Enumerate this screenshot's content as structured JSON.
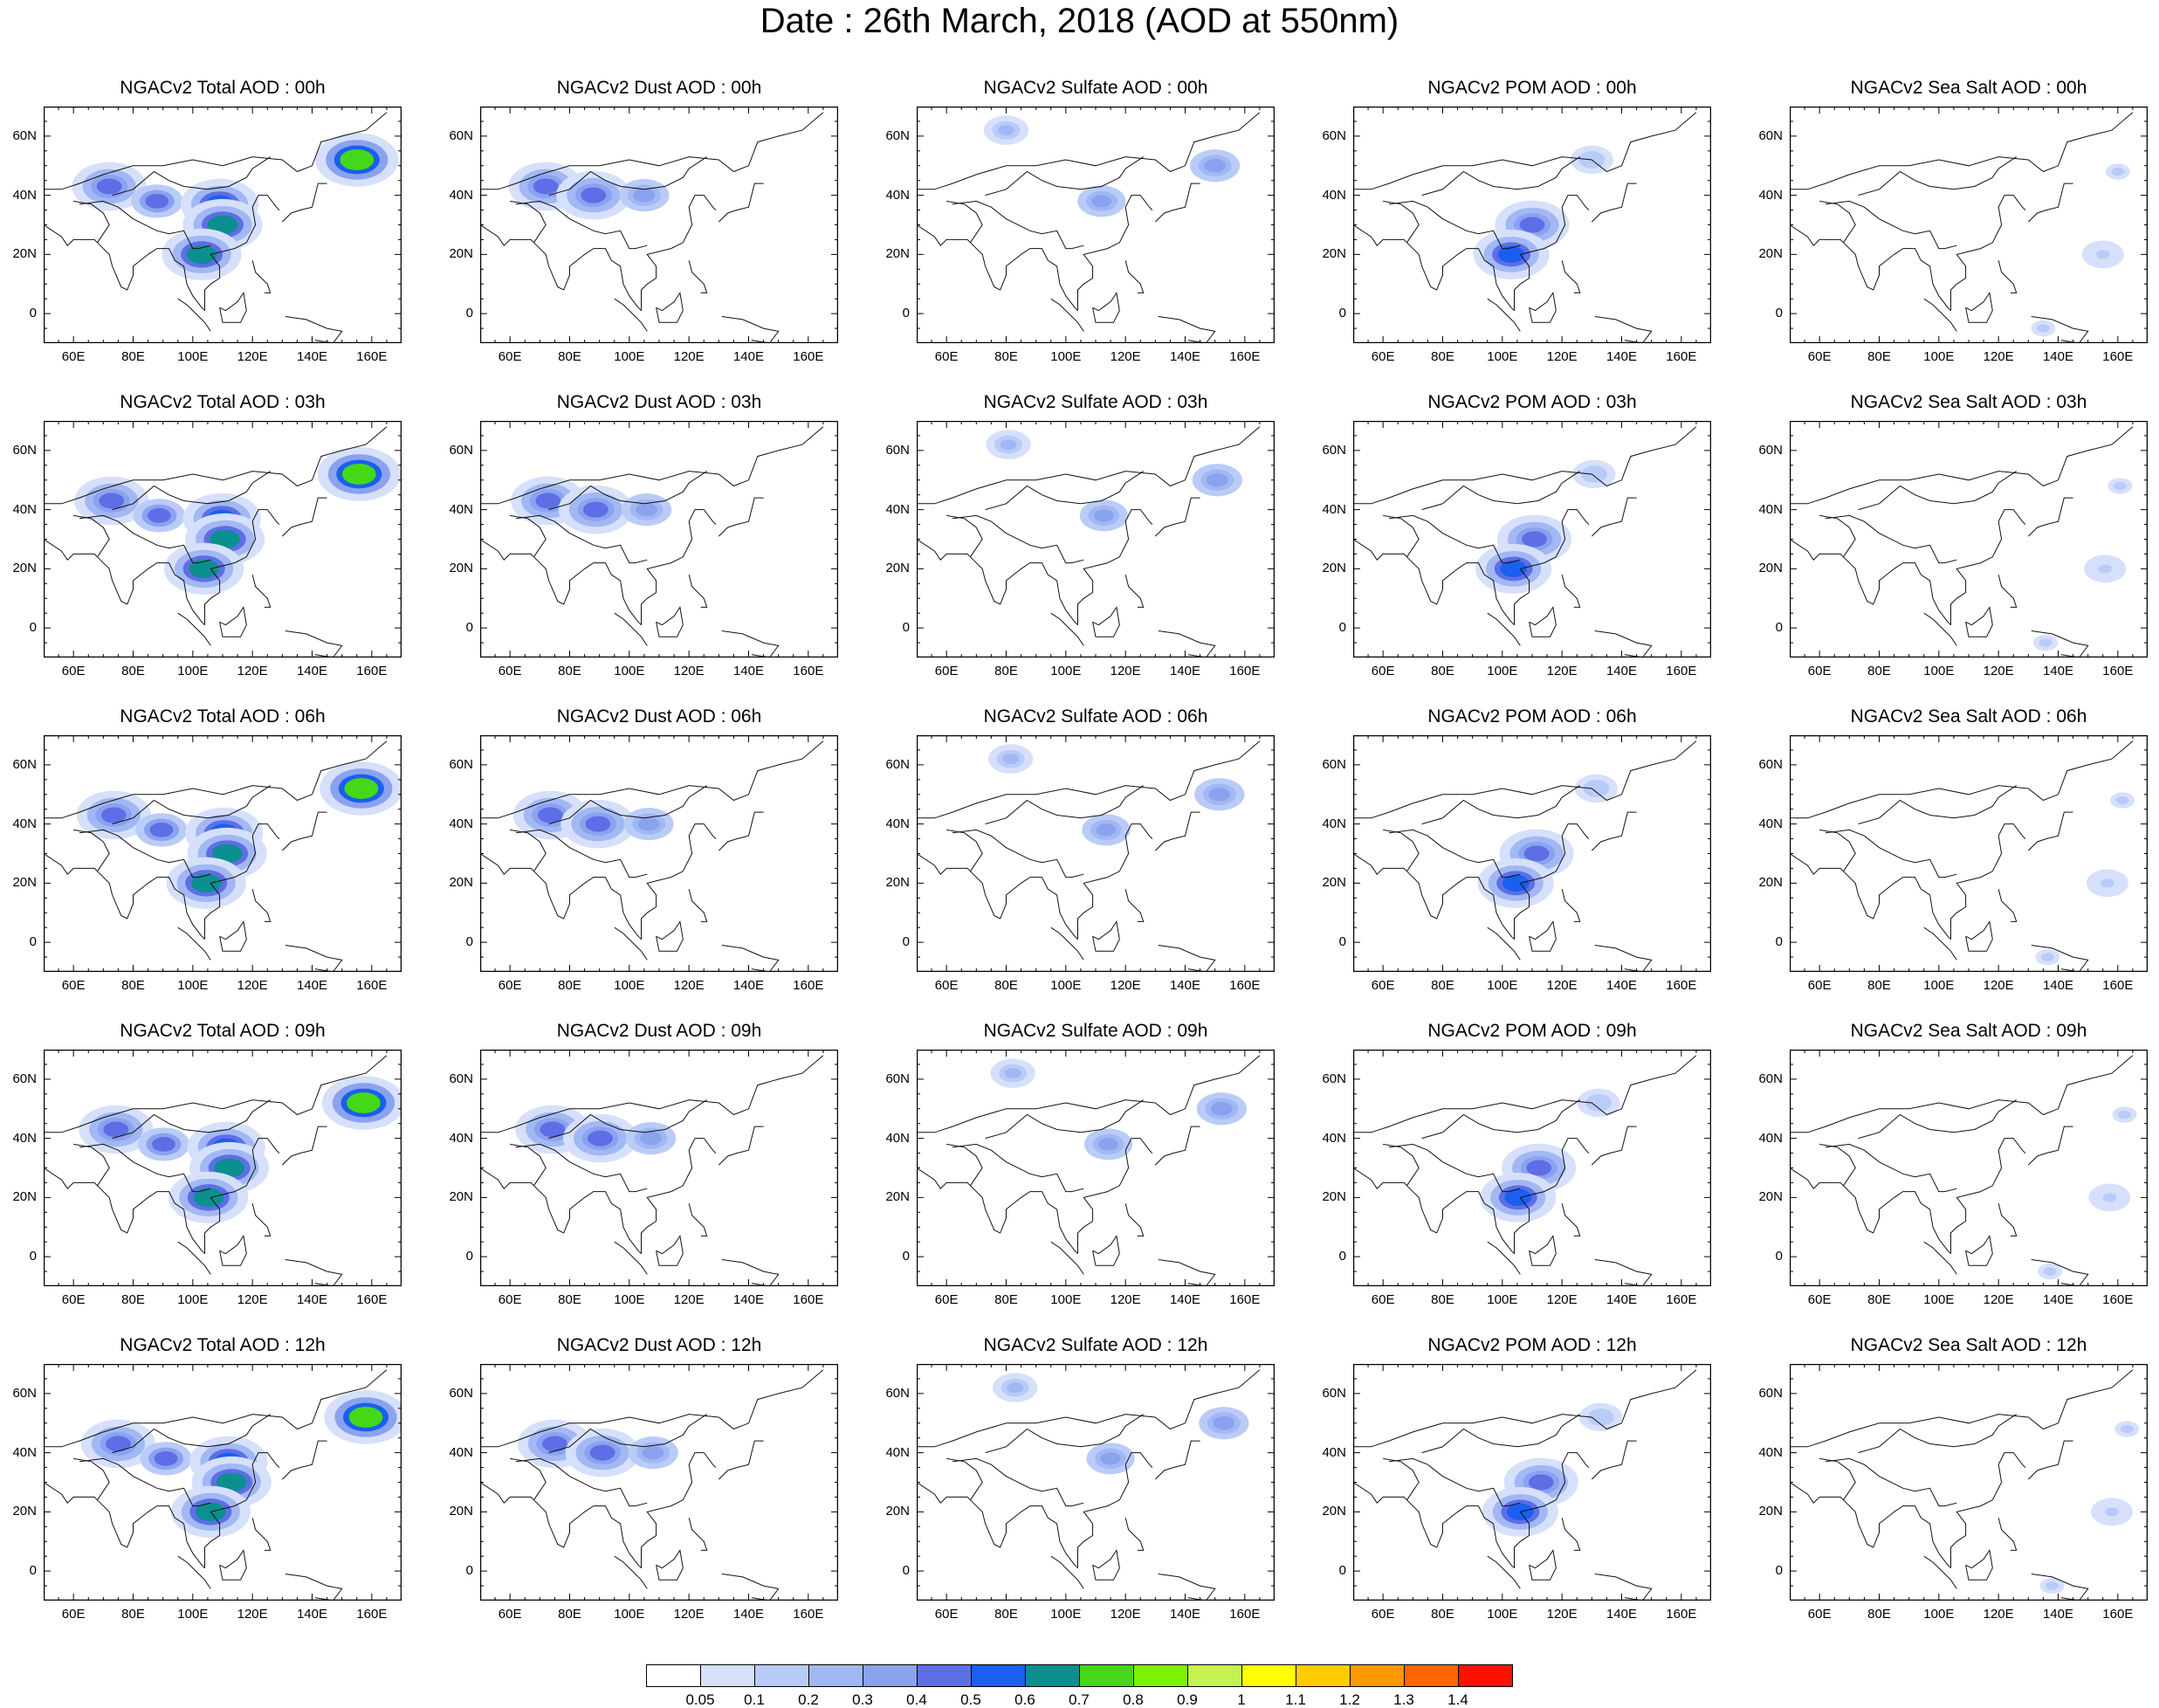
{
  "title": "Date : 26th March, 2018 (AOD at 550nm)",
  "chart_data": {
    "type": "heatmap",
    "title": "Date : 26th March, 2018 (AOD at 550nm)",
    "region": {
      "lon_range": [
        50,
        170
      ],
      "lat_range": [
        -10,
        70
      ]
    },
    "x_ticks": [
      "60E",
      "80E",
      "100E",
      "120E",
      "140E",
      "160E"
    ],
    "y_ticks": [
      "60N",
      "40N",
      "20N",
      "0"
    ],
    "panels": [
      {
        "title": "NGACv2 Total AOD : 00h",
        "species": "total",
        "hour": 0
      },
      {
        "title": "NGACv2 Dust AOD : 00h",
        "species": "dust",
        "hour": 0
      },
      {
        "title": "NGACv2 Sulfate AOD : 00h",
        "species": "sulfate",
        "hour": 0
      },
      {
        "title": "NGACv2 POM AOD : 00h",
        "species": "pom",
        "hour": 0
      },
      {
        "title": "NGACv2 Sea Salt AOD : 00h",
        "species": "seasalt",
        "hour": 0
      },
      {
        "title": "NGACv2 Total AOD : 03h",
        "species": "total",
        "hour": 3
      },
      {
        "title": "NGACv2 Dust AOD : 03h",
        "species": "dust",
        "hour": 3
      },
      {
        "title": "NGACv2 Sulfate AOD : 03h",
        "species": "sulfate",
        "hour": 3
      },
      {
        "title": "NGACv2 POM AOD : 03h",
        "species": "pom",
        "hour": 3
      },
      {
        "title": "NGACv2 Sea Salt AOD : 03h",
        "species": "seasalt",
        "hour": 3
      },
      {
        "title": "NGACv2 Total AOD : 06h",
        "species": "total",
        "hour": 6
      },
      {
        "title": "NGACv2 Dust AOD : 06h",
        "species": "dust",
        "hour": 6
      },
      {
        "title": "NGACv2 Sulfate AOD : 06h",
        "species": "sulfate",
        "hour": 6
      },
      {
        "title": "NGACv2 POM AOD : 06h",
        "species": "pom",
        "hour": 6
      },
      {
        "title": "NGACv2 Sea Salt AOD : 06h",
        "species": "seasalt",
        "hour": 6
      },
      {
        "title": "NGACv2 Total AOD : 09h",
        "species": "total",
        "hour": 9
      },
      {
        "title": "NGACv2 Dust AOD : 09h",
        "species": "dust",
        "hour": 9
      },
      {
        "title": "NGACv2 Sulfate AOD : 09h",
        "species": "sulfate",
        "hour": 9
      },
      {
        "title": "NGACv2 POM AOD : 09h",
        "species": "pom",
        "hour": 9
      },
      {
        "title": "NGACv2 Sea Salt  AOD : 09h",
        "species": "seasalt",
        "hour": 9
      },
      {
        "title": "NGACv2 Total AOD  : 12h",
        "species": "total",
        "hour": 12
      },
      {
        "title": "NGACv2 Dust AOD : 12h",
        "species": "dust",
        "hour": 12
      },
      {
        "title": "NGACv2 Sulfate AOD : 12h",
        "species": "sulfate",
        "hour": 12
      },
      {
        "title": "NGACv2 POM  AOD : 12h",
        "species": "pom",
        "hour": 12
      },
      {
        "title": "NGACv2 Sea Salt  AOD : 12h",
        "species": "seasalt",
        "hour": 12
      }
    ],
    "colorbar": {
      "labels": [
        "0.05",
        "0.1",
        "0.2",
        "0.3",
        "0.4",
        "0.5",
        "0.6",
        "0.7",
        "0.8",
        "0.9",
        "1",
        "1.1",
        "1.2",
        "1.3",
        "1.4"
      ],
      "colors": [
        "#ffffff",
        "#d6e0fb",
        "#b9cbf7",
        "#a2b8f4",
        "#8ba2ef",
        "#5e6ee6",
        "#1a5ff0",
        "#0c8f8f",
        "#44d818",
        "#7ff000",
        "#c5f250",
        "#ffff00",
        "#ffcc00",
        "#ff9900",
        "#ff6600",
        "#ff1100"
      ]
    },
    "hotspots": {
      "total": [
        {
          "lon": 72,
          "lat": 43,
          "aod": 0.45
        },
        {
          "lon": 88,
          "lat": 38,
          "aod": 0.4
        },
        {
          "lon": 109,
          "lat": 37,
          "aod": 0.55
        },
        {
          "lon": 110,
          "lat": 30,
          "aod": 0.6
        },
        {
          "lon": 103,
          "lat": 20,
          "aod": 0.6
        },
        {
          "lon": 155,
          "lat": 52,
          "aod": 0.7
        }
      ],
      "dust": [
        {
          "lon": 72,
          "lat": 43,
          "aod": 0.45
        },
        {
          "lon": 88,
          "lat": 40,
          "aod": 0.45
        },
        {
          "lon": 105,
          "lat": 40,
          "aod": 0.35
        }
      ],
      "sulfate": [
        {
          "lon": 80,
          "lat": 62,
          "aod": 0.2
        },
        {
          "lon": 112,
          "lat": 38,
          "aod": 0.3
        },
        {
          "lon": 150,
          "lat": 50,
          "aod": 0.35
        }
      ],
      "pom": [
        {
          "lon": 110,
          "lat": 30,
          "aod": 0.45
        },
        {
          "lon": 103,
          "lat": 20,
          "aod": 0.5
        },
        {
          "lon": 130,
          "lat": 52,
          "aod": 0.15
        }
      ],
      "seasalt": [
        {
          "lon": 155,
          "lat": 20,
          "aod": 0.12
        },
        {
          "lon": 160,
          "lat": 48,
          "aod": 0.1
        },
        {
          "lon": 135,
          "lat": -5,
          "aod": 0.1
        }
      ]
    }
  }
}
